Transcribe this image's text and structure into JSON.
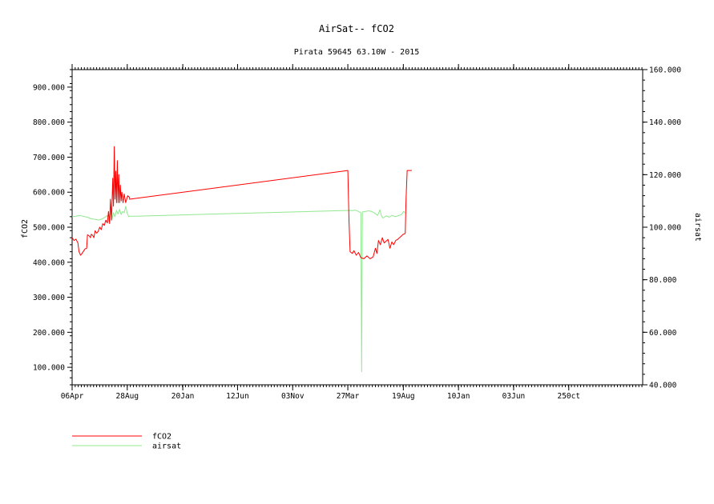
{
  "chart_data": {
    "type": "line",
    "title": "AirSat-- fCO2",
    "subtitle": "Pirata 59645 63.10W - 2015",
    "ylabel_left": "fCO2",
    "ylabel_right": "airsat",
    "ylim_left": [
      50,
      950
    ],
    "ylim_right": [
      40,
      160
    ],
    "left_ticks": [
      "100.000",
      "200.000",
      "300.000",
      "400.000",
      "500.000",
      "600.000",
      "700.000",
      "800.000",
      "900.000"
    ],
    "right_ticks": [
      "40.000",
      "60.000",
      "80.000",
      "100.000",
      "120.000",
      "140.000",
      "160.000"
    ],
    "x_ticks": [
      "06Apr",
      "28Aug",
      "20Jan",
      "12Jun",
      "03Nov",
      "27Mar",
      "19Aug",
      "10Jan",
      "03Jun",
      "250ct"
    ],
    "x_tick_days": [
      0,
      144,
      289,
      432,
      576,
      720,
      865,
      1009,
      1153,
      1297
    ],
    "xlim_days": [
      0,
      1490
    ],
    "grid": false,
    "legend_position": "bottom-left",
    "series": [
      {
        "name": "fCO2",
        "axis": "left",
        "color": "#ff0000",
        "points": [
          [
            0,
            470
          ],
          [
            5,
            462
          ],
          [
            10,
            466
          ],
          [
            15,
            455
          ],
          [
            18,
            430
          ],
          [
            22,
            420
          ],
          [
            26,
            425
          ],
          [
            30,
            432
          ],
          [
            34,
            438
          ],
          [
            38,
            440
          ],
          [
            40,
            478
          ],
          [
            44,
            476
          ],
          [
            48,
            470
          ],
          [
            50,
            480
          ],
          [
            54,
            476
          ],
          [
            57,
            470
          ],
          [
            60,
            490
          ],
          [
            64,
            483
          ],
          [
            68,
            488
          ],
          [
            72,
            500
          ],
          [
            76,
            493
          ],
          [
            80,
            510
          ],
          [
            84,
            505
          ],
          [
            88,
            520
          ],
          [
            92,
            512
          ],
          [
            95,
            545
          ],
          [
            98,
            510
          ],
          [
            100,
            580
          ],
          [
            103,
            520
          ],
          [
            106,
            640
          ],
          [
            108,
            560
          ],
          [
            110,
            730
          ],
          [
            112,
            580
          ],
          [
            114,
            660
          ],
          [
            116,
            570
          ],
          [
            118,
            690
          ],
          [
            120,
            570
          ],
          [
            122,
            650
          ],
          [
            124,
            570
          ],
          [
            126,
            620
          ],
          [
            128,
            575
          ],
          [
            130,
            600
          ],
          [
            133,
            570
          ],
          [
            136,
            595
          ],
          [
            140,
            570
          ],
          [
            145,
            590
          ],
          [
            150,
            585
          ],
          [
            150,
            580
          ],
          [
            720,
            662
          ],
          [
            723,
            520
          ],
          [
            726,
            430
          ],
          [
            732,
            425
          ],
          [
            736,
            433
          ],
          [
            742,
            420
          ],
          [
            748,
            428
          ],
          [
            754,
            413
          ],
          [
            762,
            410
          ],
          [
            770,
            418
          ],
          [
            778,
            410
          ],
          [
            786,
            415
          ],
          [
            792,
            440
          ],
          [
            796,
            425
          ],
          [
            800,
            462
          ],
          [
            805,
            450
          ],
          [
            810,
            470
          ],
          [
            815,
            455
          ],
          [
            820,
            460
          ],
          [
            825,
            465
          ],
          [
            830,
            440
          ],
          [
            835,
            458
          ],
          [
            840,
            450
          ],
          [
            845,
            462
          ],
          [
            850,
            465
          ],
          [
            855,
            470
          ],
          [
            860,
            475
          ],
          [
            865,
            480
          ],
          [
            870,
            482
          ],
          [
            872,
            578
          ],
          [
            875,
            662
          ],
          [
            887,
            662
          ]
        ]
      },
      {
        "name": "airsat",
        "axis": "right",
        "color": "#90e890",
        "points": [
          [
            0,
            104
          ],
          [
            10,
            104.2
          ],
          [
            20,
            104.5
          ],
          [
            30,
            104.1
          ],
          [
            40,
            103.8
          ],
          [
            50,
            103.2
          ],
          [
            60,
            103
          ],
          [
            70,
            102.7
          ],
          [
            80,
            103.3
          ],
          [
            88,
            104
          ],
          [
            92,
            104.5
          ],
          [
            96,
            102
          ],
          [
            100,
            106
          ],
          [
            104,
            103
          ],
          [
            108,
            105.5
          ],
          [
            112,
            104
          ],
          [
            116,
            106.5
          ],
          [
            120,
            105
          ],
          [
            124,
            106.8
          ],
          [
            128,
            104.8
          ],
          [
            132,
            106
          ],
          [
            136,
            105.5
          ],
          [
            140,
            108
          ],
          [
            144,
            105.3
          ],
          [
            148,
            104
          ],
          [
            150,
            104.2
          ],
          [
            168,
            104.2
          ],
          [
            725,
            106.4
          ],
          [
            732,
            106.3
          ],
          [
            740,
            106.5
          ],
          [
            748,
            106
          ],
          [
            754,
            105.5
          ],
          [
            756,
            45
          ],
          [
            758,
            105.8
          ],
          [
            766,
            106
          ],
          [
            774,
            106.2
          ],
          [
            782,
            106
          ],
          [
            790,
            105.4
          ],
          [
            798,
            104.5
          ],
          [
            804,
            106.6
          ],
          [
            808,
            104.2
          ],
          [
            812,
            103.5
          ],
          [
            820,
            104.3
          ],
          [
            828,
            103.8
          ],
          [
            836,
            104.5
          ],
          [
            844,
            104
          ],
          [
            852,
            104.4
          ],
          [
            860,
            104.8
          ],
          [
            866,
            106
          ],
          [
            870,
            105.4
          ]
        ]
      }
    ]
  },
  "legend": {
    "items": [
      {
        "label": "fCO2",
        "color": "#ff0000"
      },
      {
        "label": "airsat",
        "color": "#90e890"
      }
    ]
  }
}
